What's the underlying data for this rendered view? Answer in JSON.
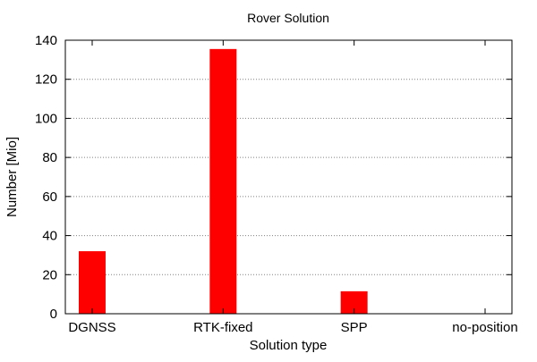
{
  "chart_data": {
    "type": "bar",
    "title": "Rover Solution",
    "xlabel": "Solution type",
    "ylabel": "Number [Mio]",
    "categories": [
      "DGNSS",
      "RTK-fixed",
      "SPP",
      "no-position"
    ],
    "values": [
      32,
      135.5,
      11.5,
      0
    ],
    "ylim": [
      0,
      140
    ],
    "yticks": [
      0,
      20,
      40,
      60,
      80,
      100,
      120,
      140
    ],
    "ytick_labels": [
      "0",
      "20",
      "40",
      "60",
      "80",
      "100",
      "120",
      "140"
    ],
    "grid": "horizontal dotted",
    "legend": "none",
    "bar_color": "#ff0000"
  }
}
